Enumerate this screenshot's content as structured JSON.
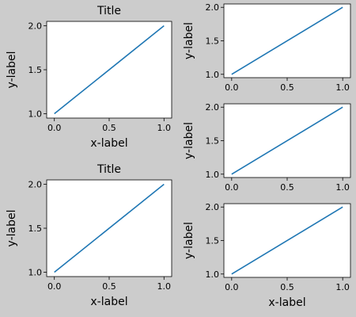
{
  "figure": {
    "background": "#cccccc",
    "line_color": "#1f77b4"
  },
  "chart_data": [
    {
      "type": "line",
      "title": "Title",
      "xlabel": "x-label",
      "ylabel": "y-label",
      "x": [
        0.0,
        1.0
      ],
      "series": [
        {
          "values": [
            1.0,
            2.0
          ]
        }
      ],
      "xlim": [
        -0.07,
        1.07
      ],
      "ylim": [
        0.95,
        2.05
      ],
      "xticks": [
        "0.0",
        "0.5",
        "1.0"
      ],
      "yticks": [
        "1.0",
        "1.5",
        "2.0"
      ],
      "grid": false
    },
    {
      "type": "line",
      "title": "",
      "xlabel": "",
      "ylabel": "y-label",
      "x": [
        0.0,
        1.0
      ],
      "series": [
        {
          "values": [
            1.0,
            2.0
          ]
        }
      ],
      "xlim": [
        -0.07,
        1.07
      ],
      "ylim": [
        0.95,
        2.05
      ],
      "xticks": [
        "0.0",
        "0.5",
        "1.0"
      ],
      "yticks": [
        "1.0",
        "1.5",
        "2.0"
      ],
      "grid": false
    },
    {
      "type": "line",
      "title": "",
      "xlabel": "",
      "ylabel": "y-label",
      "x": [
        0.0,
        1.0
      ],
      "series": [
        {
          "values": [
            1.0,
            2.0
          ]
        }
      ],
      "xlim": [
        -0.07,
        1.07
      ],
      "ylim": [
        0.95,
        2.05
      ],
      "xticks": [
        "0.0",
        "0.5",
        "1.0"
      ],
      "yticks": [
        "1.0",
        "1.5",
        "2.0"
      ],
      "grid": false
    },
    {
      "type": "line",
      "title": "Title",
      "xlabel": "x-label",
      "ylabel": "y-label",
      "x": [
        0.0,
        1.0
      ],
      "series": [
        {
          "values": [
            1.0,
            2.0
          ]
        }
      ],
      "xlim": [
        -0.07,
        1.07
      ],
      "ylim": [
        0.95,
        2.05
      ],
      "xticks": [
        "0.0",
        "0.5",
        "1.0"
      ],
      "yticks": [
        "1.0",
        "1.5",
        "2.0"
      ],
      "grid": false
    },
    {
      "type": "line",
      "title": "",
      "xlabel": "x-label",
      "ylabel": "y-label",
      "x": [
        0.0,
        1.0
      ],
      "series": [
        {
          "values": [
            1.0,
            2.0
          ]
        }
      ],
      "xlim": [
        -0.07,
        1.07
      ],
      "ylim": [
        0.95,
        2.05
      ],
      "xticks": [
        "0.0",
        "0.5",
        "1.0"
      ],
      "yticks": [
        "1.0",
        "1.5",
        "2.0"
      ],
      "grid": false
    }
  ]
}
